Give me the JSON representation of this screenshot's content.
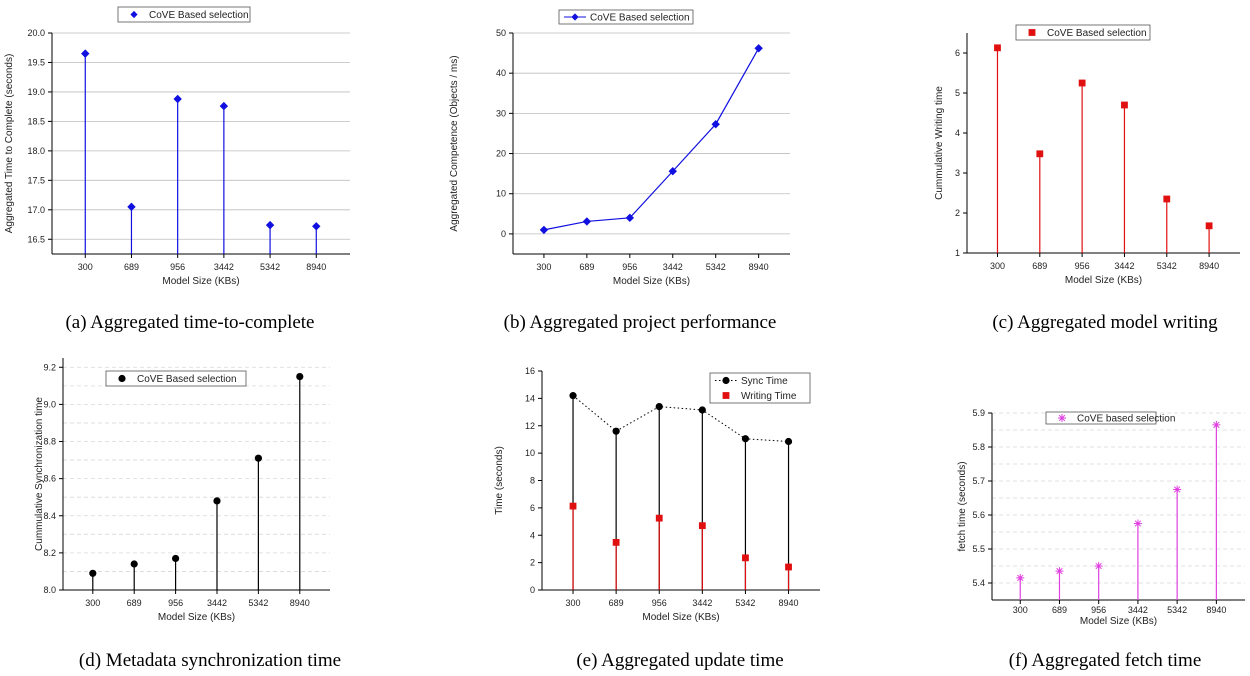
{
  "charts": [
    {
      "id": "a",
      "caption": "(a) Aggregated time-to-complete",
      "chart_data": {
        "type": "stem",
        "categories": [
          "300",
          "689",
          "956",
          "3442",
          "5342",
          "8940"
        ],
        "series": [
          {
            "name": "CoVE Based selection",
            "values": [
              19.65,
              17.05,
              18.88,
              18.76,
              16.74,
              16.72
            ],
            "color": "#1010e0",
            "marker": "diamond",
            "stem": true
          }
        ],
        "xlabel": "Model Size (KBs)",
        "ylabel": "Aggregated Time to Complete (seconds)",
        "ylim": [
          16.25,
          20.0
        ],
        "yticks": [
          16.5,
          17.0,
          17.5,
          18.0,
          18.5,
          19.0,
          19.5,
          20.0
        ],
        "ytick_labels": [
          "16.5",
          "17.0",
          "17.5",
          "18.0",
          "18.5",
          "19.0",
          "19.5",
          "20.0"
        ],
        "grid": "major-horizontal",
        "legend": "top-center"
      }
    },
    {
      "id": "b",
      "caption": "(b) Aggregated project performance",
      "chart_data": {
        "type": "line",
        "categories": [
          "300",
          "689",
          "956",
          "3442",
          "5342",
          "8940"
        ],
        "series": [
          {
            "name": "CoVE Based selection",
            "values": [
              1.0,
              3.1,
              4.0,
              15.6,
              27.3,
              46.2
            ],
            "color": "#1010e0",
            "marker": "diamond",
            "line": true
          }
        ],
        "xlabel": "Model Size (KBs)",
        "ylabel": "Aggregated Competence (Objects / ms)",
        "ylim": [
          -5,
          50
        ],
        "yticks": [
          0,
          10,
          20,
          30,
          40,
          50
        ],
        "ytick_labels": [
          "0",
          "10",
          "20",
          "30",
          "40",
          "50"
        ],
        "grid": "major-horizontal",
        "legend": "top-center"
      }
    },
    {
      "id": "c",
      "caption": "(c) Aggregated model writing",
      "chart_data": {
        "type": "stem",
        "categories": [
          "300",
          "689",
          "956",
          "3442",
          "5342",
          "8940"
        ],
        "series": [
          {
            "name": "CoVE Based selection",
            "values": [
              6.13,
              3.48,
              5.25,
              4.7,
              2.35,
              1.68
            ],
            "color": "#e01010",
            "marker": "square",
            "stem": true
          }
        ],
        "xlabel": "Model Size (KBs)",
        "ylabel": "Cummulative Writing time",
        "ylim": [
          1,
          6.5
        ],
        "yticks": [
          1,
          2,
          3,
          4,
          5,
          6
        ],
        "ytick_labels": [
          "1",
          "2",
          "3",
          "4",
          "5",
          "6"
        ],
        "grid": "none",
        "legend": "top-center"
      }
    },
    {
      "id": "d",
      "caption": "(d) Metadata synchronization time",
      "chart_data": {
        "type": "stem",
        "categories": [
          "300",
          "689",
          "956",
          "3442",
          "5342",
          "8940"
        ],
        "series": [
          {
            "name": "CoVE Based selection",
            "values": [
              8.09,
              8.14,
              8.17,
              8.48,
              8.71,
              9.15
            ],
            "color": "#000000",
            "marker": "circle",
            "stem": true
          }
        ],
        "xlabel": "Model Size (KBs)",
        "ylabel": "Cummulative Synchronization time",
        "ylim": [
          8.0,
          9.25
        ],
        "yticks": [
          8.0,
          8.2,
          8.4,
          8.6,
          8.8,
          9.0,
          9.2
        ],
        "ytick_labels": [
          "8.0",
          "8.2",
          "8.4",
          "8.6",
          "8.8",
          "9.0",
          "9.2"
        ],
        "grid": "dashed-horizontal",
        "legend": "top-center"
      }
    },
    {
      "id": "e",
      "caption": "(e) Aggregated update time",
      "chart_data": {
        "type": "stem",
        "categories": [
          "300",
          "689",
          "956",
          "3442",
          "5342",
          "8940"
        ],
        "series": [
          {
            "name": "Sync Time",
            "values": [
              14.2,
              11.6,
              13.4,
              13.15,
              11.05,
              10.85
            ],
            "color": "#000000",
            "marker": "circle",
            "stem": true,
            "dotted_line": true
          },
          {
            "name": "Writing Time",
            "values": [
              6.13,
              3.48,
              5.25,
              4.7,
              2.35,
              1.68
            ],
            "color": "#e01010",
            "marker": "square",
            "stem": true
          }
        ],
        "xlabel": "Model Size (KBs)",
        "ylabel": "Time (seconds)",
        "ylim": [
          0,
          16
        ],
        "yticks": [
          0,
          2,
          4,
          6,
          8,
          10,
          12,
          14,
          16
        ],
        "ytick_labels": [
          "0",
          "2",
          "4",
          "6",
          "8",
          "10",
          "12",
          "14",
          "16"
        ],
        "grid": "none",
        "legend": "top-right"
      }
    },
    {
      "id": "f",
      "caption": "(f) Aggregated fetch time",
      "chart_data": {
        "type": "stem",
        "categories": [
          "300",
          "689",
          "956",
          "3442",
          "5342",
          "8940"
        ],
        "series": [
          {
            "name": "CoVE based selection",
            "values": [
              5.415,
              5.435,
              5.45,
              5.575,
              5.675,
              5.865
            ],
            "color": "#e040e0",
            "marker": "star",
            "stem": true
          }
        ],
        "xlabel": "Model Size (KBs)",
        "ylabel": "fetch time (seconds)",
        "ylim": [
          5.35,
          5.9
        ],
        "yticks": [
          5.4,
          5.5,
          5.6,
          5.7,
          5.8,
          5.9
        ],
        "ytick_labels": [
          "5.4",
          "5.5",
          "5.6",
          "5.7",
          "5.8",
          "5.9"
        ],
        "grid": "dashed-horizontal",
        "legend": "top-center"
      }
    }
  ]
}
